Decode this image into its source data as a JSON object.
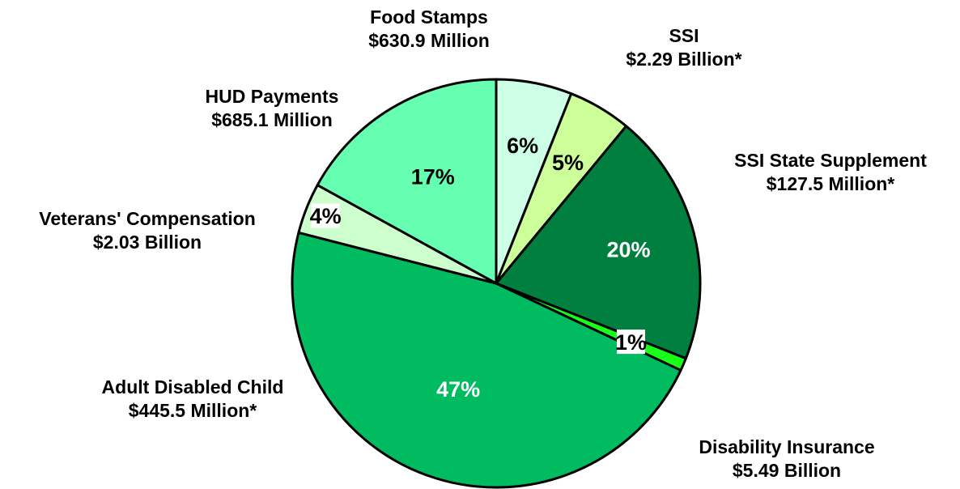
{
  "chart_data": {
    "type": "pie",
    "slices": [
      {
        "name": "Disability Insurance",
        "amount": "$5.49 Billion",
        "value": 47,
        "pct_label": "47%",
        "color": "#00bb5f",
        "pct_color": "#ffffff",
        "pct_box": false
      },
      {
        "name": "Adult Disabled Child",
        "amount": "$445.5 Million*",
        "value": 4,
        "pct_label": "4%",
        "color": "#ccffcc",
        "pct_color": "#000000",
        "pct_box": true
      },
      {
        "name": "Veterans' Compensation",
        "amount": "$2.03 Billion",
        "value": 17,
        "pct_label": "17%",
        "color": "#66ffb2",
        "pct_color": "#000000",
        "pct_box": false
      },
      {
        "name": "HUD Payments",
        "amount": "$685.1 Million",
        "value": 6,
        "pct_label": "6%",
        "color": "#ccffe5",
        "pct_color": "#000000",
        "pct_box": false
      },
      {
        "name": "Food Stamps",
        "amount": "$630.9 Million",
        "value": 5,
        "pct_label": "5%",
        "color": "#ccff99",
        "pct_color": "#000000",
        "pct_box": false
      },
      {
        "name": "SSI",
        "amount": "$2.29 Billion*",
        "value": 20,
        "pct_label": "20%",
        "color": "#007f3f",
        "pct_color": "#ffffff",
        "pct_box": false
      },
      {
        "name": "SSI State Supplement",
        "amount": "$127.5 Million*",
        "value": 1,
        "pct_label": "1%",
        "color": "#19ff19",
        "pct_color": "#000000",
        "pct_box": true
      }
    ]
  }
}
